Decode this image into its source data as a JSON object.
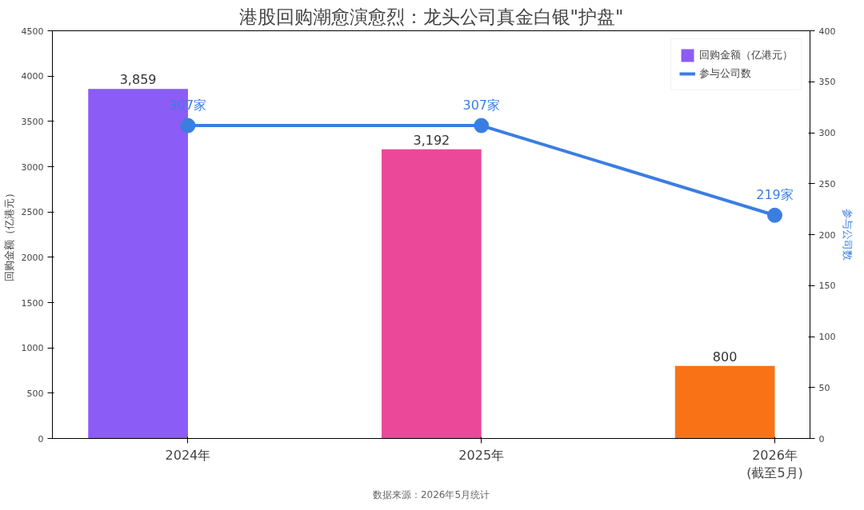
{
  "chart_data": {
    "type": "bar",
    "title": "港股回购潮愈演愈烈：龙头公司真金白银\"护盘\"",
    "ylabel": "回购金额（亿港元）",
    "y2label": "参与公司数",
    "categories": [
      "2024年",
      "2025年",
      "2026年\n(截至5月)"
    ],
    "series": [
      {
        "name": "回购金额（亿港元）",
        "colors": [
          "#8b5cf6",
          "#ec4899",
          "#f97316"
        ],
        "values": [
          3859,
          3192,
          800
        ],
        "value_labels": [
          "3,859",
          "3,192",
          "800"
        ]
      },
      {
        "name": "参与公司数",
        "type": "line",
        "axis": "y2",
        "color": "#3b7ee0",
        "values": [
          307,
          307,
          219
        ],
        "value_labels": [
          "307家",
          "307家",
          "219家"
        ],
        "marker": "circle"
      }
    ],
    "ylim": [
      0,
      4500
    ],
    "yticks": [
      0,
      500,
      1000,
      1500,
      2000,
      2500,
      3000,
      3500,
      4000,
      4500
    ],
    "y2lim": [
      0,
      400
    ],
    "y2ticks": [
      0,
      50,
      100,
      150,
      200,
      250,
      300,
      350,
      400
    ],
    "legend": "top right",
    "grid": false,
    "annotations": [
      "数据来源：2026年5月统计"
    ]
  }
}
